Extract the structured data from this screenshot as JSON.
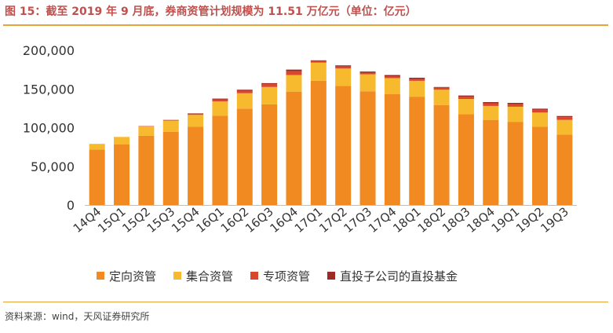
{
  "title": "图 15：截至 2019 年 9 月底，券商资管计划规模为 11.51 万亿元（单位：亿元）",
  "source": "资料来源：wind，天风证券研究所",
  "colors": {
    "directional": "#f28a22",
    "collective": "#f7b92d",
    "special": "#d9482b",
    "subsidiary": "#9e2a26",
    "axis": "#bfbfbf",
    "rule": "#e8a33d"
  },
  "chart_data": {
    "type": "bar",
    "stacked": true,
    "categories": [
      "14Q4",
      "15Q1",
      "15Q2",
      "15Q3",
      "15Q4",
      "16Q1",
      "16Q2",
      "16Q3",
      "16Q4",
      "17Q1",
      "17Q2",
      "17Q3",
      "17Q4",
      "18Q1",
      "18Q2",
      "18Q3",
      "18Q4",
      "19Q1",
      "19Q2",
      "19Q3"
    ],
    "series": [
      {
        "name": "定向资管",
        "color": "#f28a22",
        "values": [
          71500,
          78500,
          89500,
          94500,
          101000,
          115500,
          124500,
          130000,
          146500,
          160500,
          154000,
          147000,
          143500,
          140000,
          129000,
          117500,
          110000,
          107500,
          101000,
          91000
        ]
      },
      {
        "name": "集合资管",
        "color": "#f7b92d",
        "values": [
          7500,
          9500,
          12000,
          14500,
          15500,
          18500,
          20000,
          22500,
          21500,
          23500,
          22500,
          22000,
          20500,
          20500,
          20000,
          19500,
          18000,
          19500,
          18500,
          19000
        ]
      },
      {
        "name": "专项资管",
        "color": "#d9482b",
        "values": [
          0,
          0,
          500,
          1000,
          1500,
          2500,
          3000,
          3500,
          5000,
          2000,
          2500,
          2000,
          2500,
          2500,
          2500,
          3000,
          3500,
          3500,
          3500,
          3500
        ]
      },
      {
        "name": "直投子公司的直投基金",
        "color": "#9e2a26",
        "values": [
          0,
          0,
          0,
          0,
          500,
          1000,
          1500,
          1500,
          2000,
          1000,
          1500,
          1500,
          1500,
          1500,
          1000,
          1500,
          1500,
          1500,
          1500,
          1500
        ]
      }
    ],
    "y_ticks": [
      "0",
      "50,000",
      "100,000",
      "150,000",
      "200,000"
    ],
    "ylim": [
      0,
      200000
    ],
    "legend_position": "bottom"
  }
}
